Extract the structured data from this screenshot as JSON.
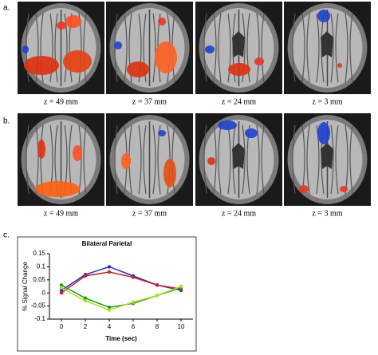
{
  "panels": [
    {
      "label": "a.",
      "slices": [
        "z = 49 mm",
        "z = 37 mm",
        "z = 24 mm",
        "z = 3 mm"
      ]
    },
    {
      "label": "b.",
      "slices": [
        "z = 49 mm",
        "z = 37 mm",
        "z = 24 mm",
        "z = 3 mm"
      ]
    },
    {
      "label": "c."
    }
  ],
  "chart_data": {
    "type": "line",
    "title": "Bilateral Parietal",
    "y_label": "% Signal Change",
    "x_label": "Time (sec)",
    "x": [
      0,
      2,
      4,
      6,
      8,
      10
    ],
    "series": [
      {
        "color": "#2233cc",
        "values": [
          0.01,
          0.07,
          0.1,
          0.065,
          0.03,
          0.01
        ]
      },
      {
        "color": "#cc2222",
        "values": [
          0.0,
          0.065,
          0.08,
          0.06,
          0.03,
          0.015
        ]
      },
      {
        "color": "#229922",
        "values": [
          0.03,
          -0.02,
          -0.055,
          -0.04,
          -0.01,
          0.02
        ]
      },
      {
        "color": "#aadd22",
        "values": [
          0.02,
          -0.03,
          -0.065,
          -0.035,
          -0.01,
          0.025
        ]
      }
    ],
    "xlim": [
      -1,
      11
    ],
    "xticks": [
      0,
      2,
      4,
      6,
      8,
      10
    ],
    "ylim": [
      -0.1,
      0.15
    ],
    "yticks": [
      0.15,
      0.1,
      0.05,
      0,
      -0.05,
      -0.1
    ]
  }
}
